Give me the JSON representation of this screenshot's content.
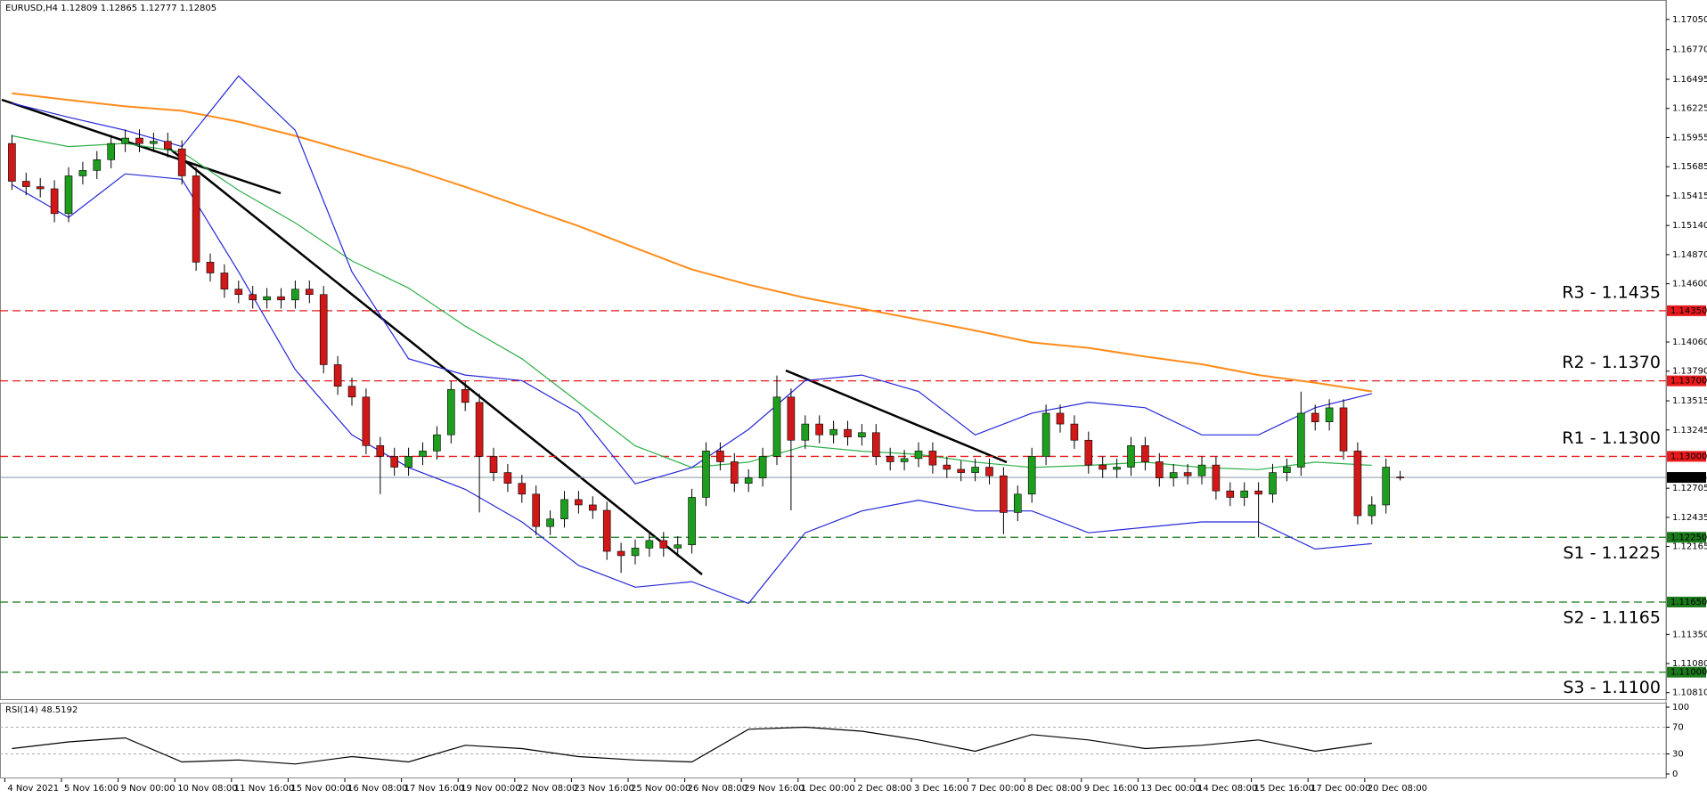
{
  "chart_data": {
    "type": "candlestick",
    "title": "EURUSD,H4  1.12809 1.12865 1.12777 1.12805",
    "categories": [
      "4 Nov 2021",
      null,
      null,
      null,
      "5 Nov 16:00",
      null,
      null,
      null,
      "9 Nov 00:00",
      null,
      null,
      null,
      "10 Nov 08:00",
      null,
      null,
      null,
      "11 Nov 16:00",
      null,
      null,
      null,
      "15 Nov 00:00",
      null,
      null,
      null,
      "16 Nov 08:00",
      null,
      null,
      null,
      "17 Nov 16:00",
      null,
      null,
      null,
      "19 Nov 00:00",
      null,
      null,
      null,
      "22 Nov 08:00",
      null,
      null,
      null,
      "23 Nov 16:00",
      null,
      null,
      null,
      "25 Nov 00:00",
      null,
      null,
      null,
      "26 Nov 08:00",
      null,
      null,
      null,
      "29 Nov 16:00",
      null,
      null,
      null,
      "1 Dec 00:00",
      null,
      null,
      null,
      "2 Dec 08:00",
      null,
      null,
      null,
      "3 Dec 16:00",
      null,
      null,
      null,
      "7 Dec 00:00",
      null,
      null,
      null,
      "8 Dec 08:00",
      null,
      null,
      null,
      "9 Dec 16:00",
      null,
      null,
      null,
      "13 Dec 00:00",
      null,
      null,
      null,
      "14 Dec 08:00",
      null,
      null,
      null,
      "15 Dec 16:00",
      null,
      null,
      null,
      "17 Dec 00:00",
      null,
      null,
      null,
      "20 Dec 08:00",
      null,
      null
    ],
    "open": [
      1.159,
      1.1555,
      1.155,
      1.1548,
      1.1525,
      1.156,
      1.1565,
      1.1575,
      1.159,
      1.1595,
      1.159,
      1.1592,
      1.1585,
      1.156,
      1.148,
      1.147,
      1.1455,
      1.145,
      1.1445,
      1.1448,
      1.1445,
      1.1455,
      1.145,
      1.1385,
      1.1365,
      1.1355,
      1.131,
      1.13,
      1.129,
      1.13,
      1.1305,
      1.132,
      1.1362,
      1.135,
      1.13,
      1.1285,
      1.1275,
      1.1265,
      1.1235,
      1.1242,
      1.126,
      1.1255,
      1.125,
      1.1212,
      1.1208,
      1.1215,
      1.1222,
      1.1215,
      1.1218,
      1.1262,
      1.1305,
      1.1295,
      1.1275,
      1.128,
      1.13,
      1.1355,
      1.1315,
      1.133,
      1.132,
      1.1325,
      1.1318,
      1.1322,
      1.13,
      1.1295,
      1.1298,
      1.1305,
      1.1292,
      1.1288,
      1.1285,
      1.129,
      1.1282,
      1.1248,
      1.1265,
      1.13,
      1.134,
      1.133,
      1.1315,
      1.1292,
      1.1288,
      1.129,
      1.131,
      1.1295,
      1.128,
      1.1285,
      1.1282,
      1.1292,
      1.1268,
      1.1262,
      1.1268,
      1.1265,
      1.1285,
      1.129,
      1.134,
      1.1332,
      1.1345,
      1.1305,
      1.1245,
      1.1255,
      1.12809
    ],
    "high": [
      1.1598,
      1.1563,
      1.1558,
      1.1556,
      1.1568,
      1.1573,
      1.1583,
      1.1598,
      1.1603,
      1.1603,
      1.16,
      1.16,
      1.1593,
      1.1568,
      1.1488,
      1.1478,
      1.1463,
      1.1458,
      1.1456,
      1.1456,
      1.1463,
      1.1463,
      1.1458,
      1.1393,
      1.1373,
      1.1363,
      1.1318,
      1.1308,
      1.1308,
      1.1313,
      1.1328,
      1.137,
      1.137,
      1.1358,
      1.1308,
      1.1293,
      1.1283,
      1.1273,
      1.125,
      1.1268,
      1.1268,
      1.1263,
      1.1258,
      1.122,
      1.1223,
      1.123,
      1.123,
      1.1226,
      1.127,
      1.1313,
      1.1313,
      1.1303,
      1.1288,
      1.1308,
      1.1375,
      1.1363,
      1.1338,
      1.1338,
      1.1333,
      1.1333,
      1.133,
      1.133,
      1.1308,
      1.1306,
      1.1313,
      1.1313,
      1.13,
      1.1296,
      1.1298,
      1.1298,
      1.129,
      1.1273,
      1.1308,
      1.1348,
      1.1348,
      1.1338,
      1.1323,
      1.13,
      1.1298,
      1.1318,
      1.1318,
      1.1303,
      1.1293,
      1.1293,
      1.13,
      1.13,
      1.1276,
      1.1276,
      1.1276,
      1.1293,
      1.1298,
      1.136,
      1.1348,
      1.1353,
      1.1353,
      1.1313,
      1.1263,
      1.1298,
      1.12865
    ],
    "low": [
      1.1547,
      1.1542,
      1.154,
      1.1517,
      1.1517,
      1.1552,
      1.1557,
      1.1567,
      1.1582,
      1.1582,
      1.1582,
      1.1577,
      1.1552,
      1.1472,
      1.1462,
      1.1447,
      1.1442,
      1.1437,
      1.1437,
      1.1437,
      1.1437,
      1.1442,
      1.1377,
      1.1357,
      1.1347,
      1.1302,
      1.1265,
      1.1282,
      1.1282,
      1.1292,
      1.1297,
      1.1312,
      1.1342,
      1.1248,
      1.1277,
      1.1267,
      1.1257,
      1.1227,
      1.1227,
      1.1234,
      1.1247,
      1.1242,
      1.1204,
      1.1192,
      1.12,
      1.1207,
      1.1207,
      1.1207,
      1.121,
      1.1254,
      1.1287,
      1.1267,
      1.1267,
      1.1272,
      1.1292,
      1.125,
      1.1307,
      1.1312,
      1.1312,
      1.131,
      1.131,
      1.1292,
      1.1287,
      1.1287,
      1.129,
      1.1284,
      1.128,
      1.1277,
      1.1277,
      1.1274,
      1.1228,
      1.124,
      1.1257,
      1.1292,
      1.1322,
      1.1307,
      1.1284,
      1.128,
      1.128,
      1.1282,
      1.1287,
      1.1272,
      1.1272,
      1.1274,
      1.1274,
      1.126,
      1.1254,
      1.1254,
      1.1225,
      1.1257,
      1.1277,
      1.1282,
      1.1324,
      1.1324,
      1.1297,
      1.1237,
      1.1237,
      1.1247,
      1.12777
    ],
    "close": [
      1.1555,
      1.155,
      1.1548,
      1.1525,
      1.156,
      1.1565,
      1.1575,
      1.159,
      1.1595,
      1.159,
      1.1592,
      1.1585,
      1.156,
      1.148,
      1.147,
      1.1455,
      1.145,
      1.1445,
      1.1448,
      1.1445,
      1.1455,
      1.145,
      1.1385,
      1.1365,
      1.1355,
      1.131,
      1.13,
      1.129,
      1.13,
      1.1305,
      1.132,
      1.1362,
      1.135,
      1.13,
      1.1285,
      1.1275,
      1.1265,
      1.1235,
      1.1242,
      1.126,
      1.1255,
      1.125,
      1.1212,
      1.1208,
      1.1215,
      1.1222,
      1.1215,
      1.1218,
      1.1262,
      1.1305,
      1.1295,
      1.1275,
      1.128,
      1.13,
      1.1355,
      1.1315,
      1.133,
      1.132,
      1.1325,
      1.1318,
      1.1322,
      1.13,
      1.1295,
      1.1298,
      1.1305,
      1.1292,
      1.1288,
      1.1285,
      1.129,
      1.1282,
      1.1248,
      1.1265,
      1.13,
      1.134,
      1.133,
      1.1315,
      1.1292,
      1.1288,
      1.129,
      1.131,
      1.1295,
      1.128,
      1.1285,
      1.1282,
      1.1292,
      1.1268,
      1.1262,
      1.1268,
      1.1265,
      1.1285,
      1.129,
      1.134,
      1.1332,
      1.1345,
      1.1305,
      1.1245,
      1.1255,
      1.129,
      1.12805
    ],
    "up_color": "#1e9e1e",
    "down_color": "#d01818",
    "lines": [
      {
        "color": "#ff8c1a",
        "values": [
          1.16365,
          1.16304,
          1.16244,
          1.16203,
          1.16102,
          1.15971,
          1.1582,
          1.15669,
          1.15498,
          1.15316,
          1.15135,
          1.14933,
          1.14732,
          1.14591,
          1.1447,
          1.14369,
          1.14268,
          1.14167,
          1.14056,
          1.14006,
          1.13925,
          1.13854,
          1.13754,
          1.13683,
          1.13602
        ]
      },
      {
        "color": "#2fb04a",
        "values": [
          1.15971,
          1.15871,
          1.15901,
          1.1582,
          1.15467,
          1.15165,
          1.14812,
          1.1456,
          1.14207,
          1.13905,
          1.13502,
          1.13098,
          1.12897,
          1.12947,
          1.13098,
          1.13048,
          1.13018,
          1.12947,
          1.12897,
          1.12917,
          1.12947,
          1.12897,
          1.12877,
          1.12947,
          1.12917
        ]
      },
      {
        "color": "#2727d8",
        "values": [
          1.16274,
          1.16143,
          1.16022,
          1.15871,
          1.16526,
          1.16022,
          1.14711,
          1.13905,
          1.13754,
          1.13703,
          1.13401,
          1.12746,
          1.12897,
          1.1325,
          1.13703,
          1.13754,
          1.13602,
          1.13199,
          1.13401,
          1.13502,
          1.13451,
          1.13199,
          1.13199,
          1.13451,
          1.13582
        ]
      },
      {
        "color": "#2727d8",
        "values": [
          1.15518,
          1.15215,
          1.15619,
          1.15568,
          1.14711,
          1.13804,
          1.13199,
          1.12897,
          1.12695,
          1.12393,
          1.1199,
          1.11788,
          1.11839,
          1.11637,
          1.12292,
          1.12494,
          1.12594,
          1.12494,
          1.12494,
          1.12292,
          1.12342,
          1.12393,
          1.12393,
          1.12141,
          1.12191
        ]
      }
    ],
    "ylim": [
      1.1075,
      1.1723
    ],
    "yticks": [
      {
        "value": 1.1705,
        "label": "1.17050"
      },
      {
        "value": 1.1677,
        "label": "1.16770"
      },
      {
        "value": 1.16495,
        "label": "1.16495"
      },
      {
        "value": 1.16225,
        "label": "1.16225"
      },
      {
        "value": 1.15955,
        "label": "1.15955"
      },
      {
        "value": 1.15685,
        "label": "1.15685"
      },
      {
        "value": 1.15415,
        "label": "1.15415"
      },
      {
        "value": 1.1514,
        "label": "1.15140"
      },
      {
        "value": 1.1487,
        "label": "1.14870"
      },
      {
        "value": 1.146,
        "label": "1.14600"
      },
      {
        "value": 1.1406,
        "label": "1.14060"
      },
      {
        "value": 1.1379,
        "label": "1.13790"
      },
      {
        "value": 1.13515,
        "label": "1.13515"
      },
      {
        "value": 1.13245,
        "label": "1.13245"
      },
      {
        "value": 1.12705,
        "label": "1.12705"
      },
      {
        "value": 1.12435,
        "label": "1.12435"
      },
      {
        "value": 1.12165,
        "label": "1.12165"
      },
      {
        "value": 1.1135,
        "label": "1.11350"
      },
      {
        "value": 1.1108,
        "label": "1.11080"
      },
      {
        "value": 1.1081,
        "label": "1.10810"
      }
    ],
    "levels": [
      {
        "name": "R3 - 1.1435",
        "value": 1.1435,
        "value_label": "1.14350",
        "color": "#e8191a"
      },
      {
        "name": "R2 - 1.1370",
        "value": 1.137,
        "value_label": "1.13700",
        "color": "#e8191a"
      },
      {
        "name": "R1 - 1.1300",
        "value": 1.13,
        "value_label": "1.13000",
        "color": "#e8191a"
      },
      {
        "name": "S1 - 1.1225",
        "value": 1.1225,
        "value_label": "1.12250",
        "color": "#1a7a1a"
      },
      {
        "name": "S2 - 1.1165",
        "value": 1.1165,
        "value_label": "1.11650",
        "color": "#1a7a1a"
      },
      {
        "name": "S3 - 1.1100",
        "value": 1.11,
        "value_label": "1.11000",
        "color": "#1a7a1a"
      }
    ],
    "current": {
      "value": 1.12805,
      "label": "1.12805"
    },
    "rsi": {
      "title": "RSI(14) 48.5192",
      "color": "#000",
      "values": [
        38,
        48,
        54,
        18,
        21,
        15,
        26,
        18,
        43,
        38,
        26,
        21,
        18,
        67,
        70,
        64,
        51,
        34,
        59,
        51,
        38,
        43,
        51,
        34,
        46
      ],
      "ylim": [
        0,
        100
      ],
      "yticks": [
        100,
        70,
        30,
        0
      ],
      "levels": [
        70,
        30
      ]
    }
  }
}
